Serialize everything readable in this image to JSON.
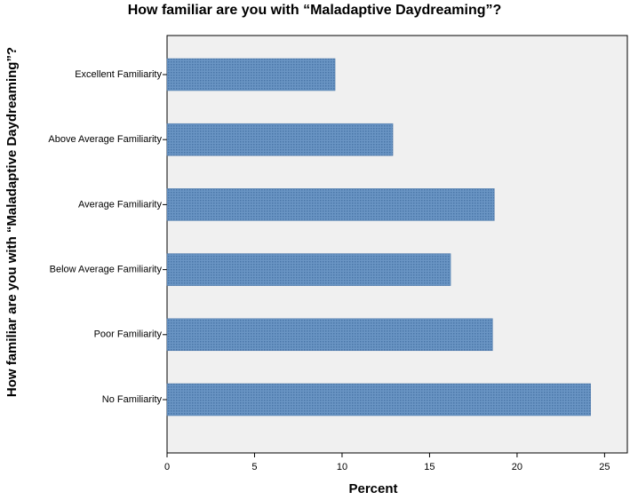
{
  "chart_data": {
    "type": "hbar",
    "title": "How familiar are you with “Maladaptive Daydreaming”?",
    "y_label": "How familiar are you with “Maladaptive Daydreaming”?",
    "x_label": "Percent",
    "categories": [
      "Excellent Familiarity",
      "Above Average Familiarity",
      "Average Familiarity",
      "Below Average Familiarity",
      "Poor Familiarity",
      "No Familiarity"
    ],
    "values": [
      9.6,
      12.9,
      18.7,
      16.2,
      18.6,
      24.2
    ],
    "color": "#5b87b8",
    "xlim": [
      0,
      26.3
    ],
    "xticks": [
      0,
      5,
      10,
      15,
      20,
      25
    ],
    "grid": false
  }
}
